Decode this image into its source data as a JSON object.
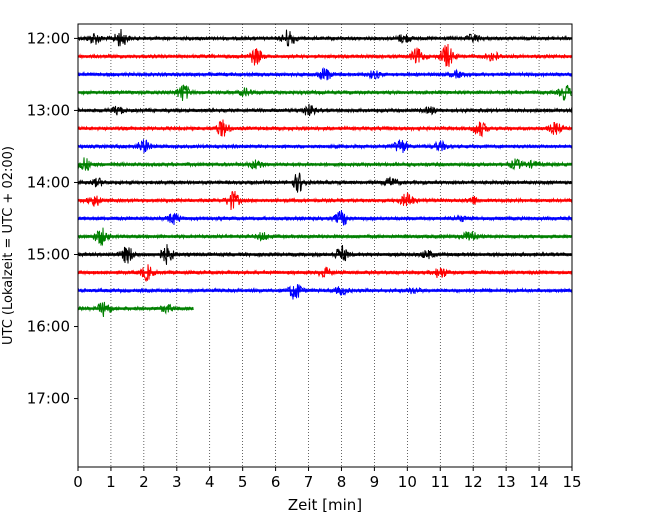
{
  "chart_data": {
    "type": "line",
    "title": "",
    "xlabel": "Zeit  [min]",
    "ylabel": "UTC (Lokalzeit = UTC + 02:00)",
    "xlim": [
      0,
      15
    ],
    "x_ticks": [
      0,
      1,
      2,
      3,
      4,
      5,
      6,
      7,
      8,
      9,
      10,
      11,
      12,
      13,
      14,
      15
    ],
    "x_tick_labels": [
      "0",
      "1",
      "2",
      "3",
      "4",
      "5",
      "6",
      "7",
      "8",
      "9",
      "10",
      "11",
      "12",
      "13",
      "14",
      "15"
    ],
    "y_tick_labels": [
      "12:00",
      "13:00",
      "14:00",
      "15:00",
      "16:00",
      "17:00"
    ],
    "ylim_hours": [
      "11:48",
      "17:57"
    ],
    "grid": "vertical dotted lines at each minute",
    "trace_interval_minutes": 15,
    "color_cycle": [
      "#000000",
      "#ff0000",
      "#0000ff",
      "#008000"
    ],
    "traces": [
      {
        "start": "12:00",
        "duration_min": 15,
        "color": "#000000",
        "bursts": [
          [
            0.5,
            0.6
          ],
          [
            1.3,
            0.9
          ],
          [
            6.4,
            1.0
          ],
          [
            9.9,
            0.5
          ],
          [
            12.0,
            0.4
          ]
        ]
      },
      {
        "start": "12:15",
        "duration_min": 15,
        "color": "#ff0000",
        "bursts": [
          [
            5.4,
            0.9
          ],
          [
            10.3,
            0.8
          ],
          [
            11.2,
            1.3
          ],
          [
            12.6,
            0.5
          ]
        ]
      },
      {
        "start": "12:30",
        "duration_min": 15,
        "color": "#0000ff",
        "bursts": [
          [
            7.5,
            0.7
          ],
          [
            9.0,
            0.4
          ],
          [
            11.5,
            0.3
          ]
        ]
      },
      {
        "start": "12:45",
        "duration_min": 15,
        "color": "#008000",
        "bursts": [
          [
            3.2,
            0.9
          ],
          [
            5.1,
            0.4
          ],
          [
            14.8,
            0.8
          ]
        ]
      },
      {
        "start": "13:00",
        "duration_min": 15,
        "color": "#000000",
        "bursts": [
          [
            1.2,
            0.4
          ],
          [
            7.0,
            0.6
          ],
          [
            10.7,
            0.3
          ]
        ]
      },
      {
        "start": "13:15",
        "duration_min": 15,
        "color": "#ff0000",
        "bursts": [
          [
            4.4,
            0.9
          ],
          [
            12.2,
            0.8
          ],
          [
            14.5,
            0.6
          ]
        ]
      },
      {
        "start": "13:30",
        "duration_min": 15,
        "color": "#0000ff",
        "bursts": [
          [
            2.0,
            0.7
          ],
          [
            9.8,
            0.8
          ],
          [
            11.0,
            0.5
          ]
        ]
      },
      {
        "start": "13:45",
        "duration_min": 15,
        "color": "#008000",
        "bursts": [
          [
            0.2,
            0.7
          ],
          [
            5.4,
            0.5
          ],
          [
            13.3,
            0.5
          ],
          [
            13.8,
            0.3
          ]
        ]
      },
      {
        "start": "14:00",
        "duration_min": 15,
        "color": "#000000",
        "bursts": [
          [
            0.6,
            0.4
          ],
          [
            6.7,
            1.0
          ],
          [
            9.5,
            0.5
          ]
        ]
      },
      {
        "start": "14:15",
        "duration_min": 15,
        "color": "#ff0000",
        "bursts": [
          [
            0.5,
            0.6
          ],
          [
            4.7,
            1.0
          ],
          [
            10.0,
            0.8
          ],
          [
            12.0,
            0.4
          ]
        ]
      },
      {
        "start": "14:30",
        "duration_min": 15,
        "color": "#0000ff",
        "bursts": [
          [
            2.9,
            0.6
          ],
          [
            8.0,
            0.8
          ],
          [
            11.6,
            0.3
          ]
        ]
      },
      {
        "start": "14:45",
        "duration_min": 15,
        "color": "#008000",
        "bursts": [
          [
            0.7,
            0.9
          ],
          [
            5.6,
            0.4
          ],
          [
            11.9,
            0.7
          ]
        ]
      },
      {
        "start": "15:00",
        "duration_min": 15,
        "color": "#000000",
        "bursts": [
          [
            1.5,
            0.9
          ],
          [
            2.7,
            1.0
          ],
          [
            8.0,
            0.9
          ],
          [
            10.6,
            0.4
          ]
        ]
      },
      {
        "start": "15:15",
        "duration_min": 15,
        "color": "#ff0000",
        "bursts": [
          [
            2.1,
            0.8
          ],
          [
            7.5,
            0.5
          ],
          [
            11.0,
            0.6
          ]
        ]
      },
      {
        "start": "15:30",
        "duration_min": 15,
        "color": "#0000ff",
        "bursts": [
          [
            6.6,
            1.0
          ],
          [
            8.0,
            0.4
          ],
          [
            10.2,
            0.3
          ]
        ]
      },
      {
        "start": "15:45",
        "duration_min": 3.5,
        "color": "#008000",
        "bursts": [
          [
            0.8,
            0.8
          ],
          [
            2.7,
            0.4
          ]
        ]
      }
    ]
  }
}
